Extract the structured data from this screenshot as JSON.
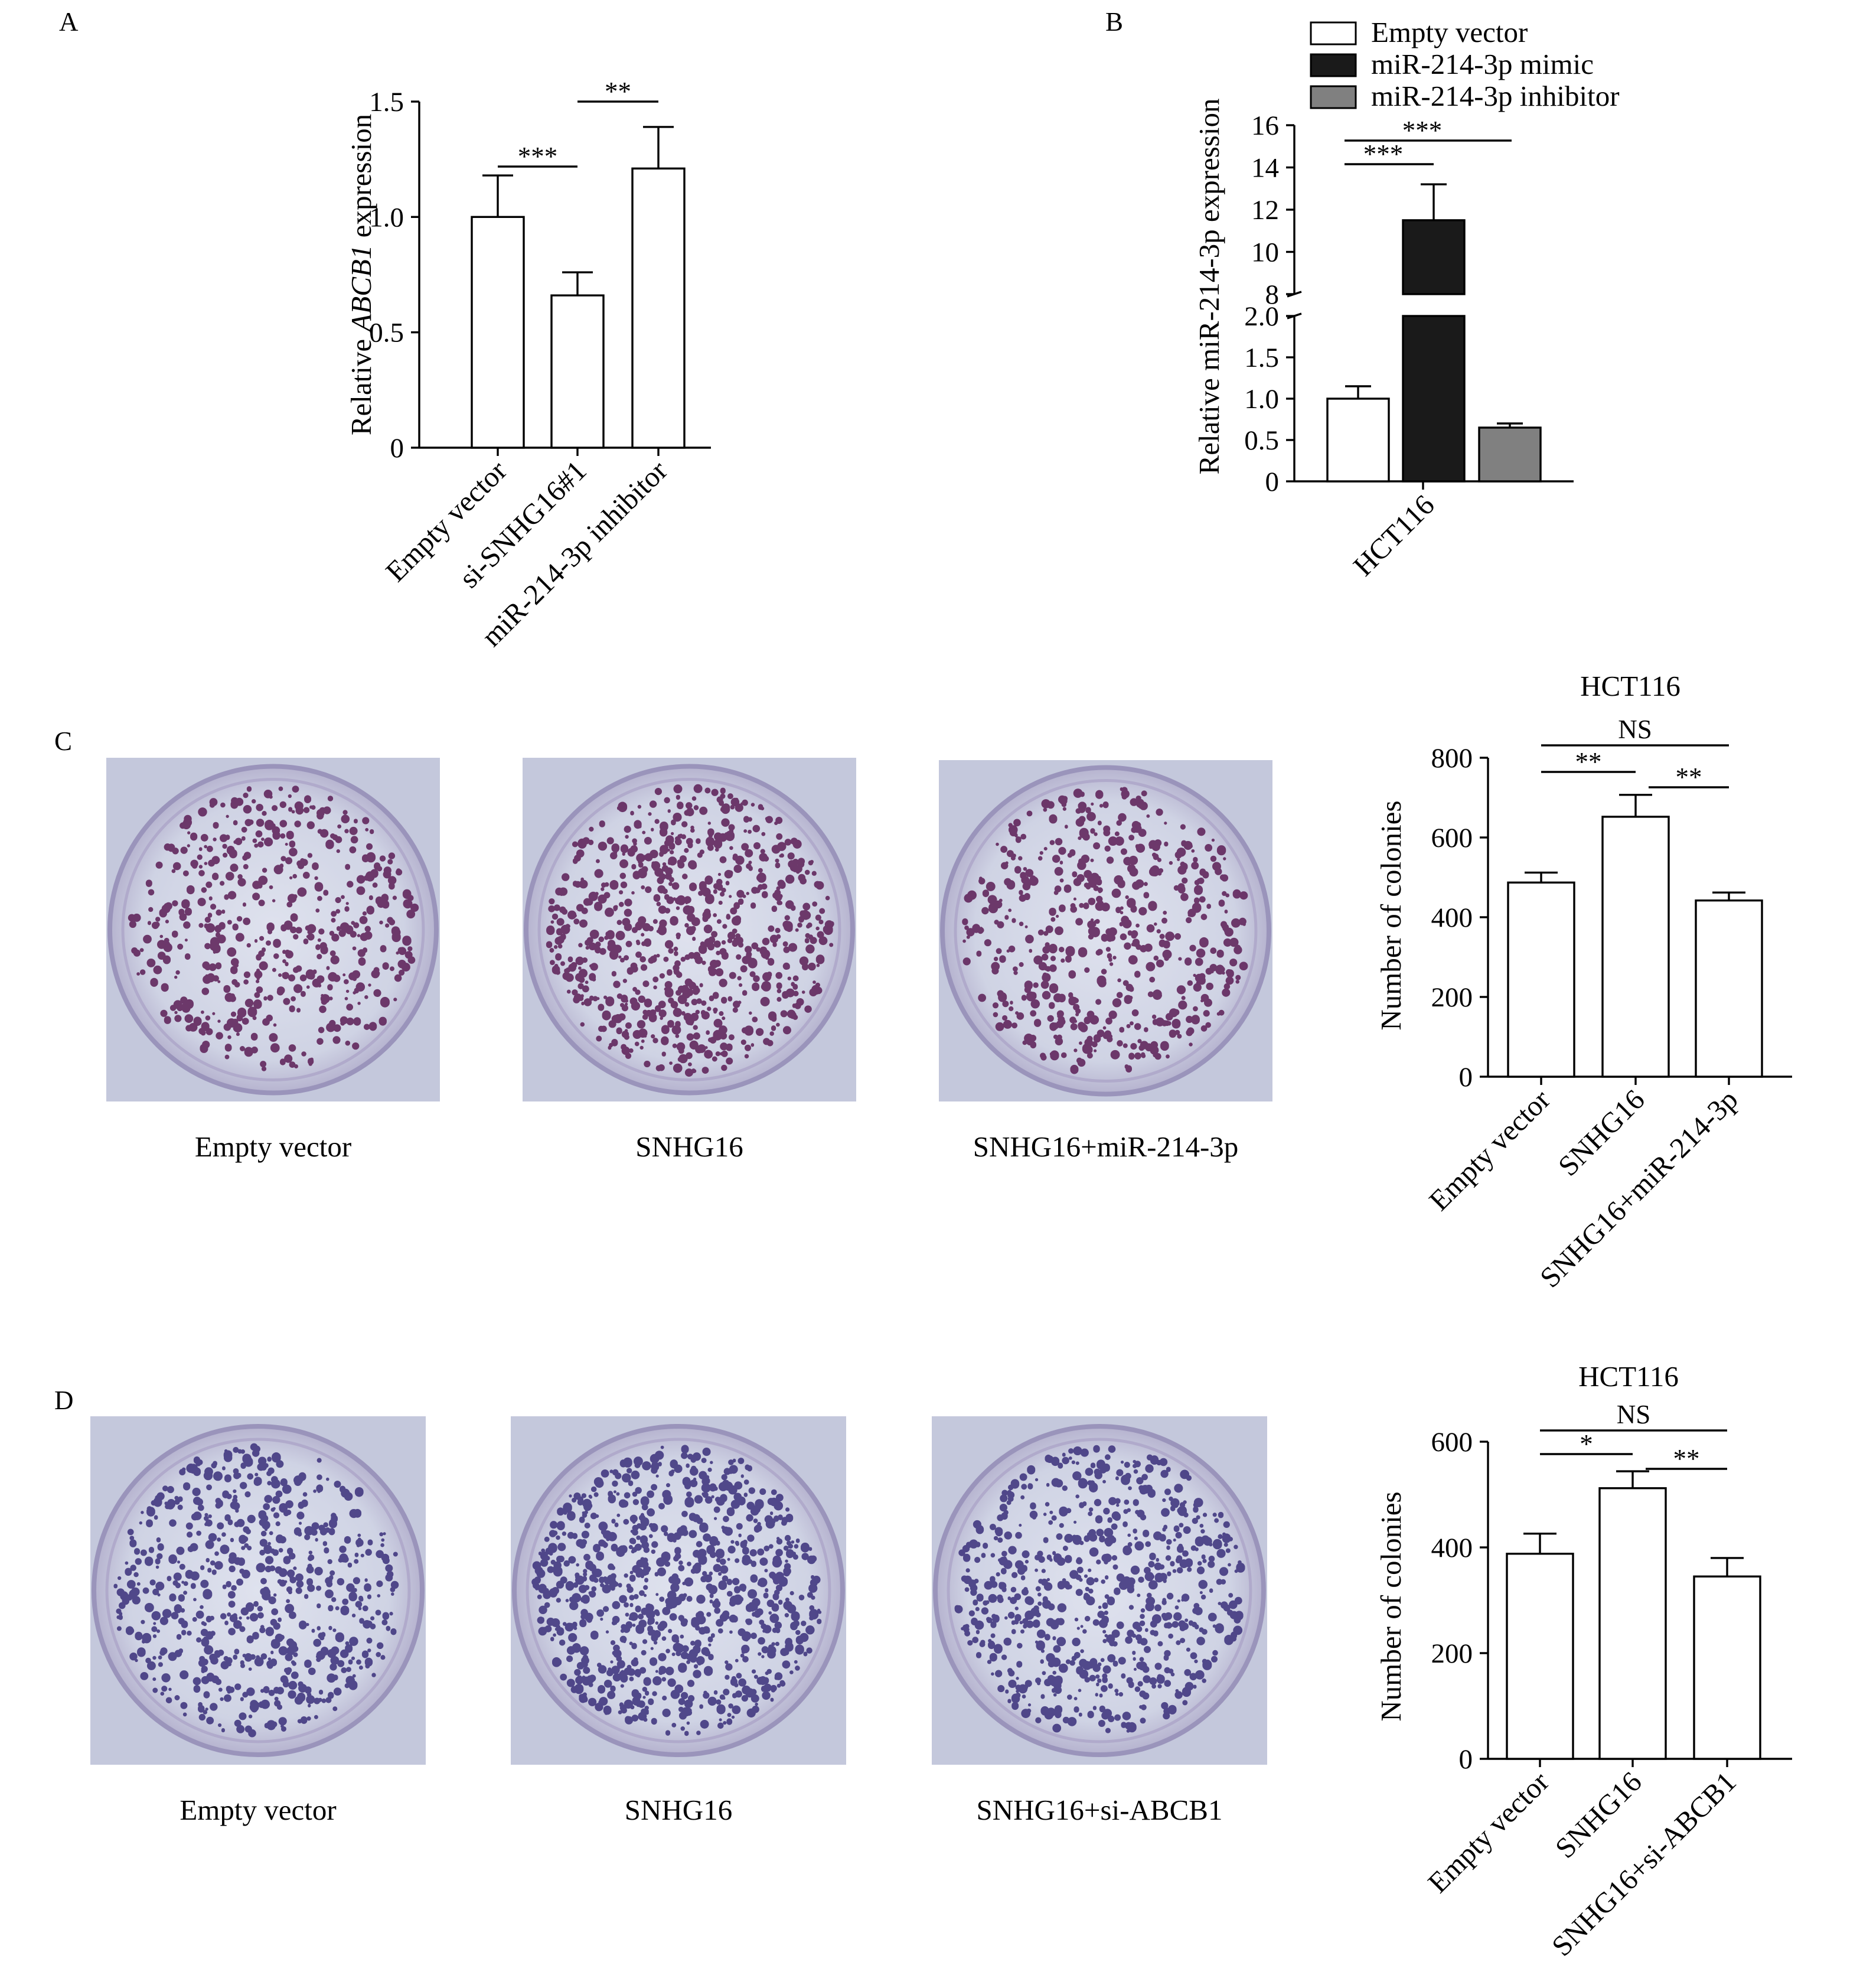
{
  "figure": {
    "panels": [
      "A",
      "B",
      "C",
      "D"
    ]
  },
  "colors": {
    "empty": "#ffffff",
    "mimic": "#1a1a1a",
    "inhibitor": "#808080",
    "plate_bg": "#c9cde0",
    "colony": "#5a1c55",
    "colony_d": "#3a2f7a"
  },
  "photos": {
    "C": [
      "Empty vector",
      "SNHG16",
      "SNHG16+miR-214-3p"
    ],
    "D": [
      "Empty vector",
      "SNHG16",
      "SNHG16+si-ABCB1"
    ]
  },
  "chart_data": [
    {
      "panel": "A",
      "type": "bar",
      "categories": [
        "Empty vector",
        "si-SNHG16#1",
        "miR-214-3p inhibitor"
      ],
      "values": [
        1.0,
        0.66,
        1.21
      ],
      "errors": [
        0.18,
        0.1,
        0.18
      ],
      "ylabel_prefix": "Relative ",
      "ylabel_italic": "ABCB1",
      "ylabel_suffix": " expression",
      "ylim": [
        0,
        1.5
      ],
      "yticks": [
        "0",
        "0.5",
        "1.0",
        "1.5"
      ],
      "significance": [
        {
          "from": 0,
          "to": 1,
          "label": "***"
        },
        {
          "from": 1,
          "to": 2,
          "label": "**"
        }
      ]
    },
    {
      "panel": "B",
      "type": "bar",
      "x": [
        "HCT116"
      ],
      "ylabel": "Relative miR-214-3p expression",
      "y_axis_break": [
        2,
        8
      ],
      "ylim": [
        0,
        16
      ],
      "yticks_lower": [
        "0",
        "0.5",
        "1.0",
        "1.5",
        "2.0"
      ],
      "yticks_upper": [
        "8",
        "10",
        "12",
        "14",
        "16"
      ],
      "legend_position": "top",
      "series": [
        {
          "name": "Empty vector",
          "values": [
            1.0
          ],
          "errors": [
            0.15
          ]
        },
        {
          "name": "miR-214-3p mimic",
          "values": [
            11.5
          ],
          "errors": [
            1.7
          ]
        },
        {
          "name": "miR-214-3p inhibitor",
          "values": [
            0.65
          ],
          "errors": [
            0.05
          ]
        }
      ],
      "significance": [
        {
          "from": 0,
          "to": 1,
          "label": "***"
        },
        {
          "from": 0,
          "to": 2,
          "label": "***"
        }
      ]
    },
    {
      "panel": "C",
      "type": "bar",
      "title": "HCT116",
      "categories": [
        "Empty vector",
        "SNHG16",
        "SNHG16+miR-214-3p"
      ],
      "values": [
        487,
        652,
        442
      ],
      "errors": [
        25,
        55,
        20
      ],
      "ylabel": "Number of colonies",
      "ylim": [
        0,
        800
      ],
      "yticks": [
        "0",
        "200",
        "400",
        "600",
        "800"
      ],
      "significance": [
        {
          "from": 0,
          "to": 1,
          "label": "**"
        },
        {
          "from": 1,
          "to": 2,
          "label": "**"
        },
        {
          "from": 0,
          "to": 2,
          "label": "NS"
        }
      ]
    },
    {
      "panel": "D",
      "type": "bar",
      "title": "HCT116",
      "categories": [
        "Empty vector",
        "SNHG16",
        "SNHG16+si-ABCB1"
      ],
      "values": [
        388,
        512,
        345
      ],
      "errors": [
        38,
        32,
        35
      ],
      "ylabel": "Number of colonies",
      "ylim": [
        0,
        600
      ],
      "yticks": [
        "0",
        "200",
        "400",
        "600"
      ],
      "significance": [
        {
          "from": 0,
          "to": 1,
          "label": "*"
        },
        {
          "from": 1,
          "to": 2,
          "label": "**"
        },
        {
          "from": 0,
          "to": 2,
          "label": "NS"
        }
      ]
    }
  ]
}
